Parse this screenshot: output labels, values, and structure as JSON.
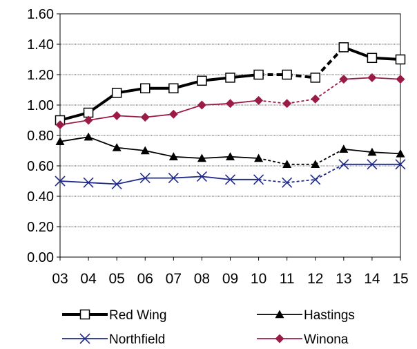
{
  "chart_data": {
    "type": "line",
    "x": [
      "03",
      "04",
      "05",
      "06",
      "07",
      "08",
      "09",
      "10",
      "11",
      "12",
      "13",
      "14",
      "15"
    ],
    "ylim": [
      0,
      1.6
    ],
    "yticks": [
      "0.00",
      "0.20",
      "0.40",
      "0.60",
      "0.80",
      "1.00",
      "1.20",
      "1.40",
      "1.60"
    ],
    "grid": true,
    "legend_position": "bottom",
    "dashed_between": [
      "10",
      "13"
    ],
    "series": [
      {
        "name": "Red Wing",
        "marker": "square-open",
        "color": "#000000",
        "width": "thick",
        "values": [
          0.9,
          0.95,
          1.08,
          1.11,
          1.11,
          1.16,
          1.18,
          1.2,
          1.2,
          1.18,
          1.38,
          1.31,
          1.3
        ]
      },
      {
        "name": "Hastings",
        "marker": "triangle",
        "color": "#000000",
        "width": "thin",
        "values": [
          0.76,
          0.79,
          0.72,
          0.7,
          0.66,
          0.65,
          0.66,
          0.65,
          0.61,
          0.61,
          0.71,
          0.69,
          0.68
        ]
      },
      {
        "name": "Northfield",
        "marker": "x",
        "color": "#1f2a8c",
        "width": "thin",
        "values": [
          0.5,
          0.49,
          0.48,
          0.52,
          0.52,
          0.53,
          0.51,
          0.51,
          0.49,
          0.51,
          0.61,
          0.61,
          0.61
        ]
      },
      {
        "name": "Winona",
        "marker": "diamond",
        "color": "#9b1b48",
        "width": "thin",
        "values": [
          0.87,
          0.9,
          0.93,
          0.92,
          0.94,
          1.0,
          1.01,
          1.03,
          1.01,
          1.04,
          1.17,
          1.18,
          1.17
        ]
      }
    ]
  }
}
